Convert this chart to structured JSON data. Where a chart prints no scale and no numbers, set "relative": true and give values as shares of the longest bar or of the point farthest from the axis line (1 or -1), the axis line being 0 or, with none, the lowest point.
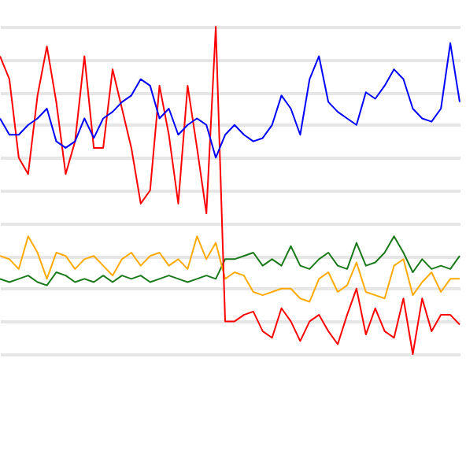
{
  "chart_data": {
    "type": "line",
    "relative": true,
    "grid": true,
    "categories": [
      null,
      null,
      null,
      null,
      null,
      null,
      null,
      null,
      null,
      null,
      null,
      null,
      null,
      null,
      null,
      null,
      null,
      null,
      null,
      null,
      null,
      null,
      null,
      null,
      null,
      null,
      null,
      null,
      null,
      null,
      null,
      null,
      null,
      null,
      null,
      null,
      null,
      null,
      null,
      null,
      null,
      null,
      null,
      null,
      null,
      null,
      null,
      null,
      null,
      null
    ],
    "series": [
      {
        "color": "#1a7a1a",
        "values": [
          0.23,
          0.22,
          0.23,
          0.24,
          0.22,
          0.21,
          0.25,
          0.24,
          0.22,
          0.23,
          0.22,
          0.24,
          0.22,
          0.24,
          0.23,
          0.24,
          0.22,
          0.23,
          0.24,
          0.23,
          0.22,
          0.23,
          0.24,
          0.23,
          0.29,
          0.29,
          0.3,
          0.31,
          0.27,
          0.29,
          0.27,
          0.33,
          0.27,
          0.26,
          0.29,
          0.31,
          0.27,
          0.26,
          0.34,
          0.27,
          0.28,
          0.31,
          0.36,
          0.31,
          0.25,
          0.29,
          0.26,
          0.27,
          0.26,
          0.3
        ]
      },
      {
        "color": "#ffaa00",
        "values": [
          0.3,
          0.29,
          0.26,
          0.36,
          0.31,
          0.23,
          0.31,
          0.3,
          0.26,
          0.29,
          0.3,
          0.27,
          0.24,
          0.29,
          0.31,
          0.27,
          0.3,
          0.31,
          0.27,
          0.29,
          0.26,
          0.36,
          0.29,
          0.34,
          0.23,
          0.25,
          0.24,
          0.19,
          0.18,
          0.19,
          0.2,
          0.2,
          0.17,
          0.16,
          0.23,
          0.25,
          0.19,
          0.21,
          0.28,
          0.19,
          0.18,
          0.17,
          0.27,
          0.29,
          0.18,
          0.22,
          0.25,
          0.19,
          0.23,
          0.23
        ]
      },
      {
        "color": "#ff0000",
        "values": [
          0.91,
          0.84,
          0.6,
          0.55,
          0.79,
          0.94,
          0.77,
          0.55,
          0.65,
          0.91,
          0.63,
          0.63,
          0.87,
          0.75,
          0.63,
          0.46,
          0.5,
          0.82,
          0.67,
          0.46,
          0.82,
          0.63,
          0.43,
          1,
          0.1,
          0.1,
          0.12,
          0.13,
          0.07,
          0.05,
          0.14,
          0.1,
          0.04,
          0.1,
          0.12,
          0.07,
          0.03,
          0.12,
          0.2,
          0.06,
          0.14,
          0.07,
          0.05,
          0.17,
          0,
          0.17,
          0.07,
          0.12,
          0.12,
          0.09
        ]
      },
      {
        "color": "#0000ff",
        "values": [
          0.72,
          0.67,
          0.67,
          0.7,
          0.72,
          0.75,
          0.65,
          0.63,
          0.65,
          0.72,
          0.66,
          0.72,
          0.74,
          0.77,
          0.79,
          0.84,
          0.82,
          0.72,
          0.75,
          0.67,
          0.7,
          0.72,
          0.7,
          0.6,
          0.67,
          0.7,
          0.67,
          0.65,
          0.66,
          0.7,
          0.79,
          0.75,
          0.67,
          0.84,
          0.91,
          0.77,
          0.74,
          0.72,
          0.7,
          0.8,
          0.78,
          0.82,
          0.87,
          0.84,
          0.75,
          0.72,
          0.71,
          0.75,
          0.95,
          0.77
        ]
      }
    ]
  }
}
